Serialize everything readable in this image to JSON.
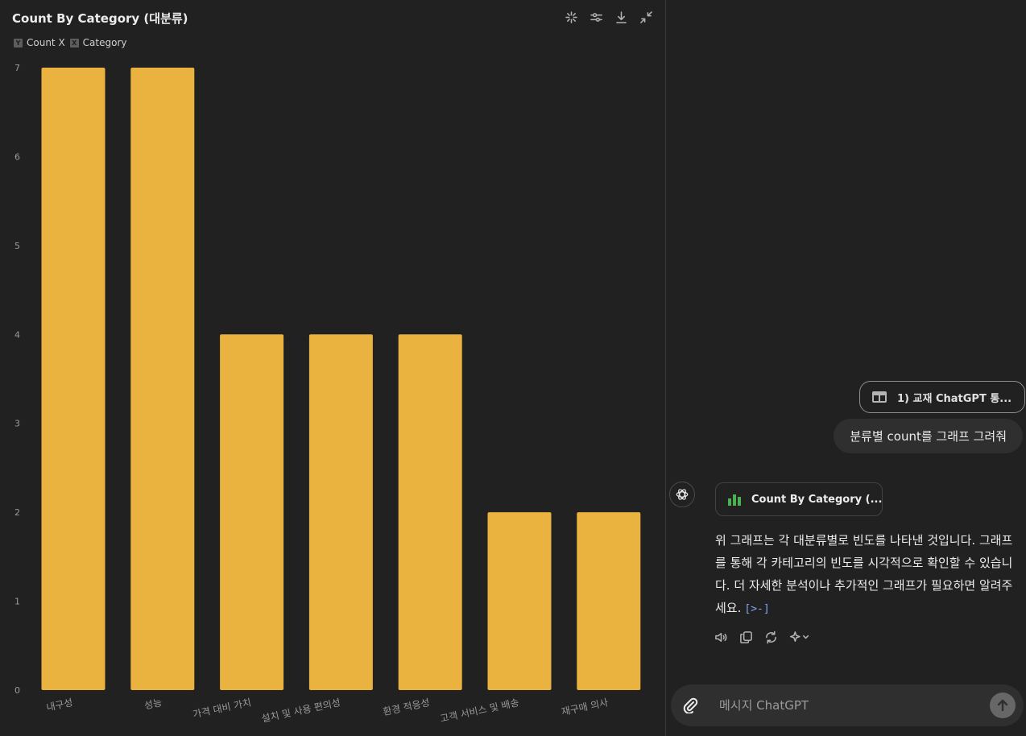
{
  "chart_panel": {
    "title": "Count By Category (대분류)",
    "legend": [
      {
        "key": "Y",
        "label": "Count X"
      },
      {
        "key": "X",
        "label": "Category"
      }
    ],
    "toolbar": {
      "icons": [
        "sparkle-icon",
        "adjust-icon",
        "download-icon",
        "collapse-icon"
      ]
    }
  },
  "chart_data": {
    "type": "bar",
    "categories": [
      "내구성",
      "성능",
      "가격 대비 가치",
      "설치 및 사용 편의성",
      "환경 적응성",
      "고객 서비스 및 배송",
      "재구매 의사"
    ],
    "values": [
      7,
      7,
      4,
      4,
      4,
      2,
      2
    ],
    "title": "Count By Category (대분류)",
    "xlabel": "",
    "ylabel": "",
    "ylim": [
      0,
      7
    ],
    "yticks": [
      "0",
      "1",
      "2",
      "3",
      "4",
      "5",
      "6",
      "7"
    ],
    "bar_color": "#eab33f",
    "grid": false,
    "legend_position": "top-left"
  },
  "chat": {
    "attachment_label": "1) 교재 ChatGPT 통...",
    "user_message": "분류별 count를 그래프 그려줘",
    "assistant_chip_label": "Count By Category (...",
    "assistant_text": "위 그래프는 각 대분류별로 빈도를 나타낸 것입니다. 그래프를 통해 각 카테고리의 빈도를 시각적으로 확인할 수 있습니다. 더 자세한 분석이나 추가적인 그래프가 필요하면 알려주세요.",
    "citation": "[>-]",
    "actions": [
      "speaker-icon",
      "copy-icon",
      "regenerate-icon",
      "sparkle-icon"
    ],
    "composer_placeholder": "메시지 ChatGPT"
  },
  "colors": {
    "background": "#212121",
    "bar": "#eab33f",
    "accent_green": "#4caf50",
    "link": "#7ea6f5"
  }
}
